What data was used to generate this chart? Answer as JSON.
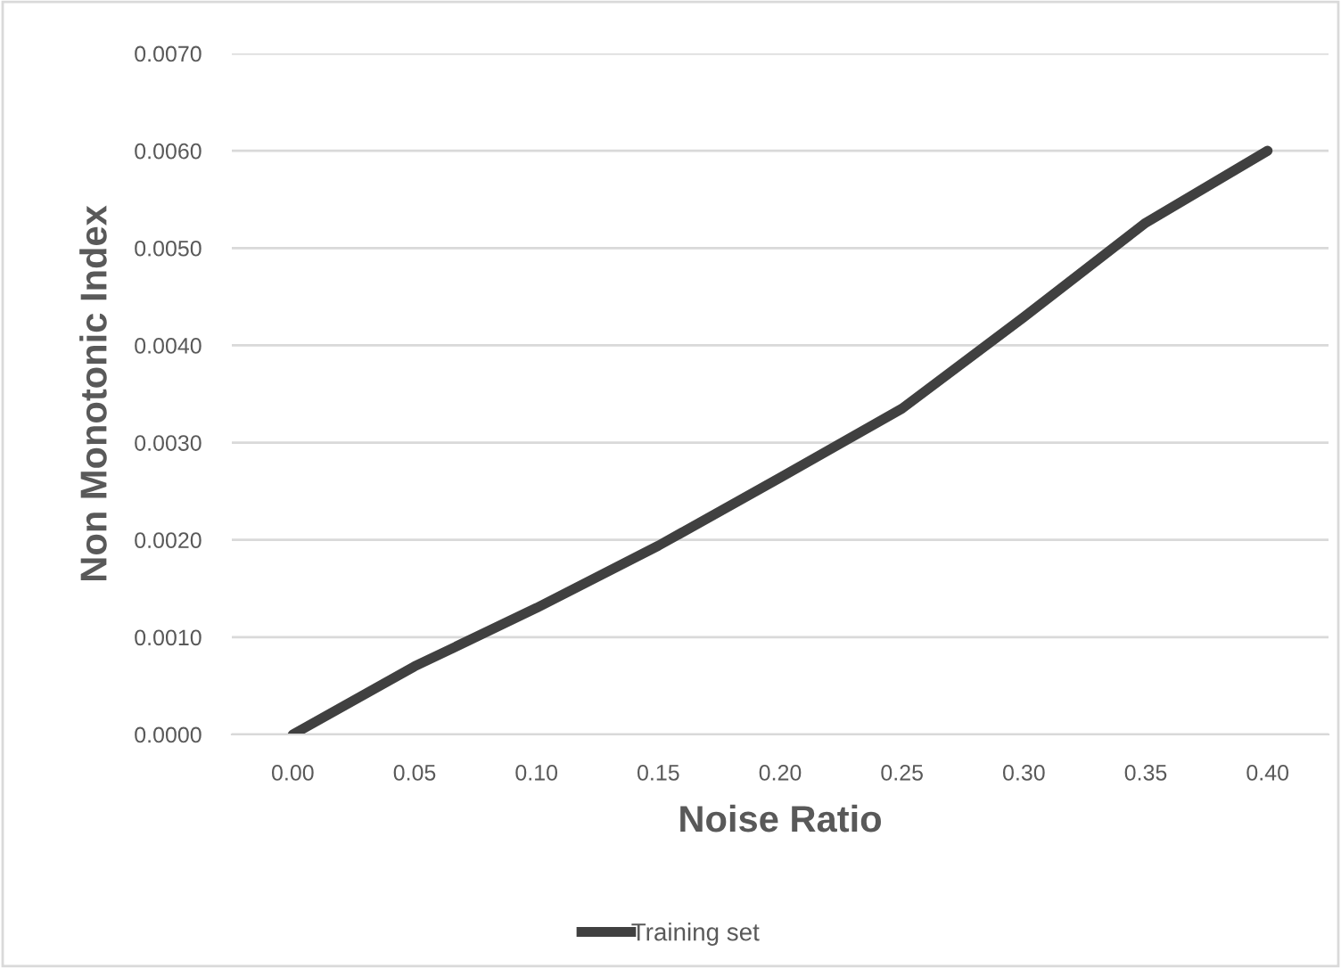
{
  "chart_data": {
    "type": "line",
    "xlabel": "Noise Ratio",
    "ylabel": "Non Monotonic Index",
    "categories": [
      "0.00",
      "0.05",
      "0.10",
      "0.15",
      "0.20",
      "0.25",
      "0.30",
      "0.35",
      "0.40"
    ],
    "series": [
      {
        "name": "Training set",
        "color": "#404040",
        "values": [
          0.0,
          0.0007,
          0.0013,
          0.00194,
          0.00264,
          0.00335,
          0.00429,
          0.00526,
          0.006
        ]
      }
    ],
    "ylim": [
      0,
      0.007
    ],
    "yticks": [
      {
        "value": 0,
        "label": "0.0000"
      },
      {
        "value": 0.001,
        "label": "0.0010"
      },
      {
        "value": 0.002,
        "label": "0.0020"
      },
      {
        "value": 0.003,
        "label": "0.0030"
      },
      {
        "value": 0.004,
        "label": "0.0040"
      },
      {
        "value": 0.005,
        "label": "0.0050"
      },
      {
        "value": 0.006,
        "label": "0.0060"
      },
      {
        "value": 0.007,
        "label": "0.0070"
      }
    ],
    "grid": "y",
    "legend": "bottom",
    "marker": "none",
    "line_style": "solid"
  }
}
